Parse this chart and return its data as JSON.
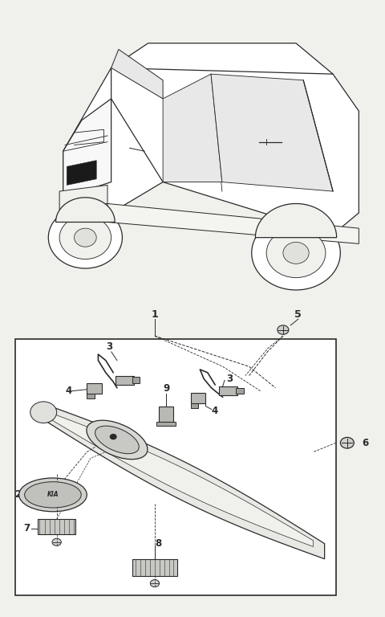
{
  "bg_color": "#f0f0ec",
  "line_color": "#2a2a2a",
  "box_color": "#ffffff",
  "fig_width": 4.8,
  "fig_height": 7.68,
  "dpi": 100
}
